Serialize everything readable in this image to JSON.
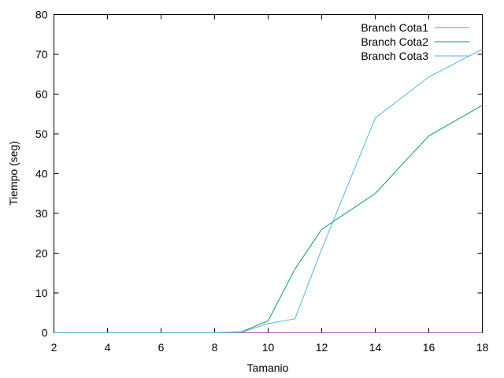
{
  "chart_data": {
    "type": "line",
    "xlabel": "Tamanio",
    "ylabel": "Tiempo (seg)",
    "xlim": [
      2,
      18
    ],
    "ylim": [
      0,
      80
    ],
    "xticks": [
      2,
      4,
      6,
      8,
      10,
      12,
      14,
      16,
      18
    ],
    "yticks": [
      0,
      10,
      20,
      30,
      40,
      50,
      60,
      70,
      80
    ],
    "grid": false,
    "legend_position": "top-right",
    "series": [
      {
        "name": "Branch Cota1",
        "color": "#c05ad8",
        "x": [
          2,
          3,
          4,
          5,
          6,
          7,
          8,
          9,
          10,
          11,
          12,
          14,
          16,
          18
        ],
        "y": [
          0,
          0,
          0,
          0,
          0,
          0,
          0,
          0,
          0,
          0,
          0,
          0,
          0,
          0
        ]
      },
      {
        "name": "Branch Cota2",
        "color": "#009e73",
        "x": [
          2,
          3,
          4,
          5,
          6,
          7,
          8,
          9,
          10,
          11,
          12,
          14,
          16,
          18
        ],
        "y": [
          0,
          0,
          0,
          0,
          0,
          0,
          0,
          0.2,
          3,
          16,
          26,
          35,
          49.5,
          57.2
        ]
      },
      {
        "name": "Branch Cota3",
        "color": "#56b4e9",
        "x": [
          2,
          3,
          4,
          5,
          6,
          7,
          8,
          9,
          10,
          11,
          12,
          14,
          16,
          18
        ],
        "y": [
          0,
          0,
          0,
          0,
          0,
          0,
          0,
          0.1,
          2.3,
          3.5,
          21,
          54,
          64.3,
          71.3
        ]
      }
    ]
  }
}
